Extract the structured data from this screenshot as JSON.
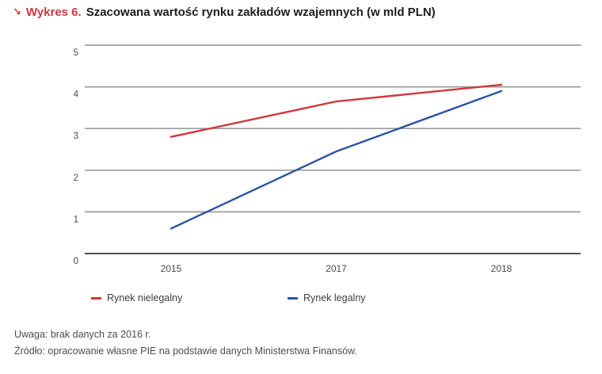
{
  "header": {
    "arrow": "↘",
    "kicker": "Wykres 6.",
    "title": "Szacowana wartość rynku zakładów wzajemnych (w mld PLN)"
  },
  "chart_data": {
    "type": "line",
    "title": "Szacowana wartość rynku zakładów wzajemnych (w mld PLN)",
    "categories": [
      "2015",
      "2017",
      "2018"
    ],
    "series": [
      {
        "name": "Rynek nielegalny",
        "color": "#d0373f",
        "values": [
          2.8,
          3.65,
          4.05
        ]
      },
      {
        "name": "Rynek legalny",
        "color": "#2a54a3",
        "values": [
          0.6,
          2.45,
          3.9
        ]
      }
    ],
    "xlabel": "",
    "ylabel": "",
    "ylim": [
      0,
      5
    ],
    "yticks": [
      0,
      1,
      2,
      3,
      4,
      5
    ],
    "grid": "horizontal",
    "legend_position": "bottom",
    "note": "Uwaga: brak danych za 2016 r.",
    "source": "Źródło: opracowanie własne PIE na podstawie danych Ministerstwa Finansów."
  },
  "colors": {
    "accent_red": "#d0373f",
    "accent_blue": "#2a54a3",
    "gridline": "#9c9c9c",
    "axis": "#3a3a3a",
    "tick_text": "#4a4a4a",
    "note_text": "#4c4c4c"
  }
}
